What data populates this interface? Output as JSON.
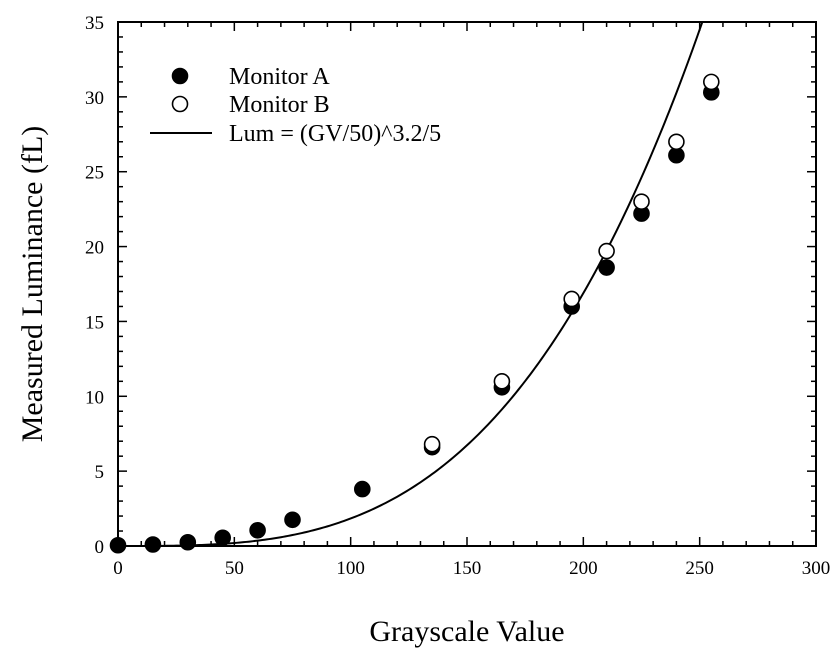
{
  "chart_data": {
    "type": "scatter",
    "title": "",
    "xlabel": "Grayscale Value",
    "ylabel": "Measured Luminance (fL)",
    "xlim": [
      0,
      300
    ],
    "ylim": [
      0,
      35
    ],
    "x_ticks": [
      0,
      50,
      100,
      150,
      200,
      250,
      300
    ],
    "y_ticks": [
      0,
      5,
      10,
      15,
      20,
      25,
      30,
      35
    ],
    "grid": false,
    "legend_position": "top-left",
    "series": [
      {
        "name": "Monitor A",
        "marker": "filled-circle",
        "color": "#000000",
        "points": [
          [
            0,
            0.05
          ],
          [
            15,
            0.1
          ],
          [
            30,
            0.25
          ],
          [
            45,
            0.55
          ],
          [
            60,
            1.05
          ],
          [
            75,
            1.75
          ],
          [
            105,
            3.8
          ],
          [
            135,
            6.6
          ],
          [
            165,
            10.6
          ],
          [
            195,
            16.0
          ],
          [
            210,
            18.6
          ],
          [
            225,
            22.2
          ],
          [
            240,
            26.1
          ],
          [
            255,
            30.3
          ]
        ]
      },
      {
        "name": "Monitor B",
        "marker": "open-circle",
        "color": "#000000",
        "points": [
          [
            135,
            6.8
          ],
          [
            165,
            11.0
          ],
          [
            195,
            16.5
          ],
          [
            210,
            19.7
          ],
          [
            225,
            23.0
          ],
          [
            240,
            27.0
          ],
          [
            255,
            31.0
          ]
        ]
      },
      {
        "name": "Lum = (GV/50)^3.2/5",
        "type": "line",
        "color": "#000000",
        "formula": "(x/50)^3.2/5",
        "x_range": [
          0,
          300
        ]
      }
    ]
  }
}
